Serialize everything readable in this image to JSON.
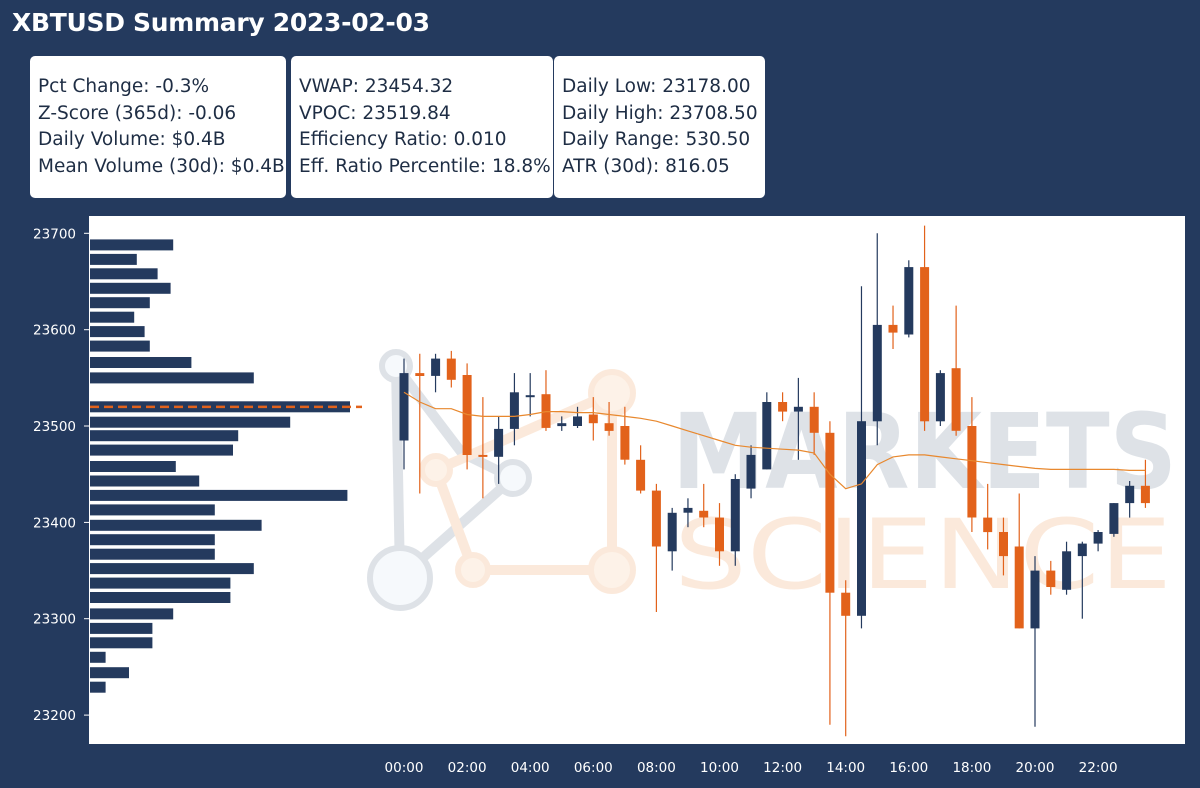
{
  "title": "XBTUSD Summary 2023-02-03",
  "stats": {
    "box1": [
      "Pct Change: -0.3%",
      "Z-Score (365d): -0.06",
      "Daily Volume: $0.4B",
      "Mean Volume (30d): $0.4B"
    ],
    "box2": [
      "VWAP: 23454.32",
      "VPOC: 23519.84",
      "Efficiency Ratio: 0.010",
      "Eff. Ratio Percentile: 18.8%"
    ],
    "box3": [
      "Daily Low: 23178.00",
      "Daily High: 23708.50",
      "Daily Range: 530.50",
      "ATR (30d): 816.05"
    ]
  },
  "colors": {
    "background": "#243a5e",
    "up": "#243a5e",
    "down": "#e2621b",
    "vwap": "#e8882e",
    "profile_bar": "#243a5e",
    "vpoc_line": "#e2621b"
  },
  "watermark": {
    "line1": "MARKETS",
    "line2": "SCIENCE"
  },
  "chart_data": {
    "type": "candlestick",
    "ylim": [
      23170,
      23718
    ],
    "yticks": [
      23200,
      23300,
      23400,
      23500,
      23600,
      23700
    ],
    "xticks": [
      "00:00",
      "02:00",
      "04:00",
      "06:00",
      "08:00",
      "10:00",
      "12:00",
      "14:00",
      "16:00",
      "18:00",
      "20:00",
      "22:00"
    ],
    "candle_step_hours": 0.5,
    "candles": [
      {
        "o": 23485,
        "h": 23570,
        "l": 23455,
        "c": 23555
      },
      {
        "o": 23555,
        "h": 23575,
        "l": 23430,
        "c": 23552
      },
      {
        "o": 23552,
        "h": 23575,
        "l": 23535,
        "c": 23570
      },
      {
        "o": 23570,
        "h": 23578,
        "l": 23540,
        "c": 23548
      },
      {
        "o": 23553,
        "h": 23565,
        "l": 23455,
        "c": 23470
      },
      {
        "o": 23470,
        "h": 23530,
        "l": 23425,
        "c": 23468
      },
      {
        "o": 23468,
        "h": 23510,
        "l": 23440,
        "c": 23497
      },
      {
        "o": 23497,
        "h": 23555,
        "l": 23480,
        "c": 23535
      },
      {
        "o": 23530,
        "h": 23555,
        "l": 23510,
        "c": 23532
      },
      {
        "o": 23533,
        "h": 23558,
        "l": 23495,
        "c": 23498
      },
      {
        "o": 23500,
        "h": 23510,
        "l": 23495,
        "c": 23503
      },
      {
        "o": 23500,
        "h": 23520,
        "l": 23498,
        "c": 23510
      },
      {
        "o": 23512,
        "h": 23530,
        "l": 23485,
        "c": 23503
      },
      {
        "o": 23503,
        "h": 23525,
        "l": 23490,
        "c": 23495
      },
      {
        "o": 23500,
        "h": 23520,
        "l": 23460,
        "c": 23465
      },
      {
        "o": 23465,
        "h": 23480,
        "l": 23430,
        "c": 23433
      },
      {
        "o": 23433,
        "h": 23440,
        "l": 23307,
        "c": 23375
      },
      {
        "o": 23370,
        "h": 23415,
        "l": 23350,
        "c": 23410
      },
      {
        "o": 23410,
        "h": 23425,
        "l": 23395,
        "c": 23415
      },
      {
        "o": 23412,
        "h": 23440,
        "l": 23395,
        "c": 23405
      },
      {
        "o": 23405,
        "h": 23420,
        "l": 23355,
        "c": 23370
      },
      {
        "o": 23370,
        "h": 23450,
        "l": 23355,
        "c": 23445
      },
      {
        "o": 23435,
        "h": 23480,
        "l": 23425,
        "c": 23470
      },
      {
        "o": 23455,
        "h": 23535,
        "l": 23455,
        "c": 23525
      },
      {
        "o": 23525,
        "h": 23535,
        "l": 23505,
        "c": 23515
      },
      {
        "o": 23515,
        "h": 23550,
        "l": 23465,
        "c": 23520
      },
      {
        "o": 23520,
        "h": 23535,
        "l": 23470,
        "c": 23493
      },
      {
        "o": 23493,
        "h": 23505,
        "l": 23190,
        "c": 23327
      },
      {
        "o": 23327,
        "h": 23340,
        "l": 23178,
        "c": 23303
      },
      {
        "o": 23303,
        "h": 23645,
        "l": 23290,
        "c": 23505
      },
      {
        "o": 23505,
        "h": 23700,
        "l": 23480,
        "c": 23605
      },
      {
        "o": 23605,
        "h": 23625,
        "l": 23580,
        "c": 23597
      },
      {
        "o": 23595,
        "h": 23672,
        "l": 23592,
        "c": 23665
      },
      {
        "o": 23665,
        "h": 23708,
        "l": 23495,
        "c": 23505
      },
      {
        "o": 23505,
        "h": 23558,
        "l": 23500,
        "c": 23555
      },
      {
        "o": 23560,
        "h": 23625,
        "l": 23490,
        "c": 23495
      },
      {
        "o": 23500,
        "h": 23530,
        "l": 23390,
        "c": 23405
      },
      {
        "o": 23405,
        "h": 23440,
        "l": 23372,
        "c": 23390
      },
      {
        "o": 23390,
        "h": 23405,
        "l": 23345,
        "c": 23365
      },
      {
        "o": 23375,
        "h": 23430,
        "l": 23290,
        "c": 23290
      },
      {
        "o": 23290,
        "h": 23365,
        "l": 23188,
        "c": 23350
      },
      {
        "o": 23350,
        "h": 23360,
        "l": 23325,
        "c": 23333
      },
      {
        "o": 23330,
        "h": 23380,
        "l": 23325,
        "c": 23370
      },
      {
        "o": 23365,
        "h": 23380,
        "l": 23300,
        "c": 23378
      },
      {
        "o": 23378,
        "h": 23392,
        "l": 23370,
        "c": 23390
      },
      {
        "o": 23388,
        "h": 23420,
        "l": 23385,
        "c": 23420
      },
      {
        "o": 23420,
        "h": 23443,
        "l": 23405,
        "c": 23438
      },
      {
        "o": 23438,
        "h": 23465,
        "l": 23415,
        "c": 23420
      }
    ],
    "vwap": [
      23535,
      23525,
      23518,
      23518,
      23512,
      23510,
      23510,
      23510,
      23512,
      23515,
      23515,
      23514,
      23514,
      23512,
      23510,
      23508,
      23505,
      23500,
      23495,
      23490,
      23485,
      23480,
      23478,
      23477,
      23476,
      23475,
      23472,
      23450,
      23435,
      23440,
      23460,
      23468,
      23470,
      23470,
      23468,
      23466,
      23464,
      23462,
      23460,
      23458,
      23456,
      23455,
      23455,
      23455,
      23455,
      23455,
      23454,
      23454
    ],
    "volume_profile": [
      {
        "price": 23688,
        "vol": 0.32
      },
      {
        "price": 23673,
        "vol": 0.18
      },
      {
        "price": 23658,
        "vol": 0.26
      },
      {
        "price": 23643,
        "vol": 0.31
      },
      {
        "price": 23628,
        "vol": 0.23
      },
      {
        "price": 23613,
        "vol": 0.17
      },
      {
        "price": 23598,
        "vol": 0.21
      },
      {
        "price": 23583,
        "vol": 0.23
      },
      {
        "price": 23566,
        "vol": 0.39
      },
      {
        "price": 23550,
        "vol": 0.63
      },
      {
        "price": 23520,
        "vol": 1.0
      },
      {
        "price": 23504,
        "vol": 0.77
      },
      {
        "price": 23490,
        "vol": 0.57
      },
      {
        "price": 23475,
        "vol": 0.55
      },
      {
        "price": 23458,
        "vol": 0.33
      },
      {
        "price": 23443,
        "vol": 0.42
      },
      {
        "price": 23428,
        "vol": 0.99
      },
      {
        "price": 23413,
        "vol": 0.48
      },
      {
        "price": 23397,
        "vol": 0.66
      },
      {
        "price": 23382,
        "vol": 0.48
      },
      {
        "price": 23367,
        "vol": 0.48
      },
      {
        "price": 23352,
        "vol": 0.63
      },
      {
        "price": 23337,
        "vol": 0.54
      },
      {
        "price": 23322,
        "vol": 0.54
      },
      {
        "price": 23305,
        "vol": 0.32
      },
      {
        "price": 23290,
        "vol": 0.24
      },
      {
        "price": 23275,
        "vol": 0.24
      },
      {
        "price": 23260,
        "vol": 0.06
      },
      {
        "price": 23244,
        "vol": 0.15
      },
      {
        "price": 23229,
        "vol": 0.06
      }
    ],
    "vpoc": 23519.84
  }
}
